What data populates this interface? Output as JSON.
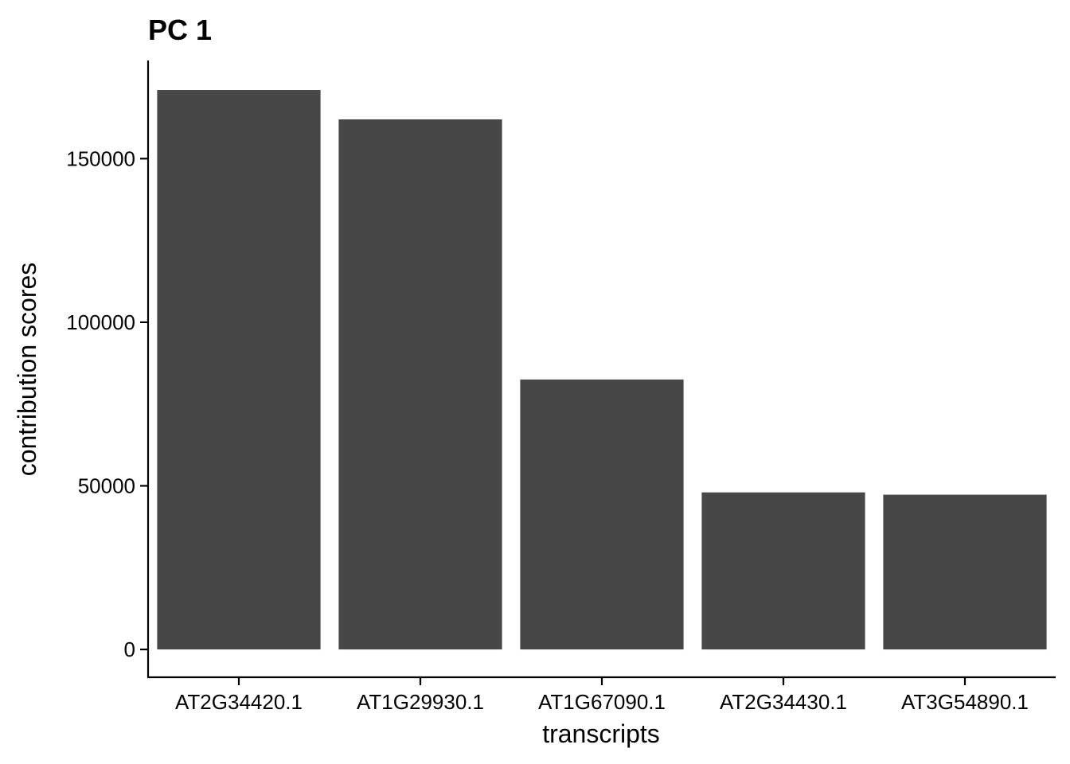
{
  "chart_data": {
    "type": "bar",
    "title": "PC 1",
    "xlabel": "transcripts",
    "ylabel": "contribution scores",
    "categories": [
      "AT2G34420.1",
      "AT1G29930.1",
      "AT1G67090.1",
      "AT2G34430.1",
      "AT3G54890.1"
    ],
    "values": [
      171000,
      162000,
      82500,
      48000,
      47300
    ],
    "ylim": [
      -8500,
      180000
    ],
    "yticks": [
      0,
      50000,
      100000,
      150000
    ],
    "ytick_labels": [
      "0",
      "50000",
      "100000",
      "150000"
    ],
    "grid": false,
    "legend": "none",
    "bar_color": "#474747"
  }
}
